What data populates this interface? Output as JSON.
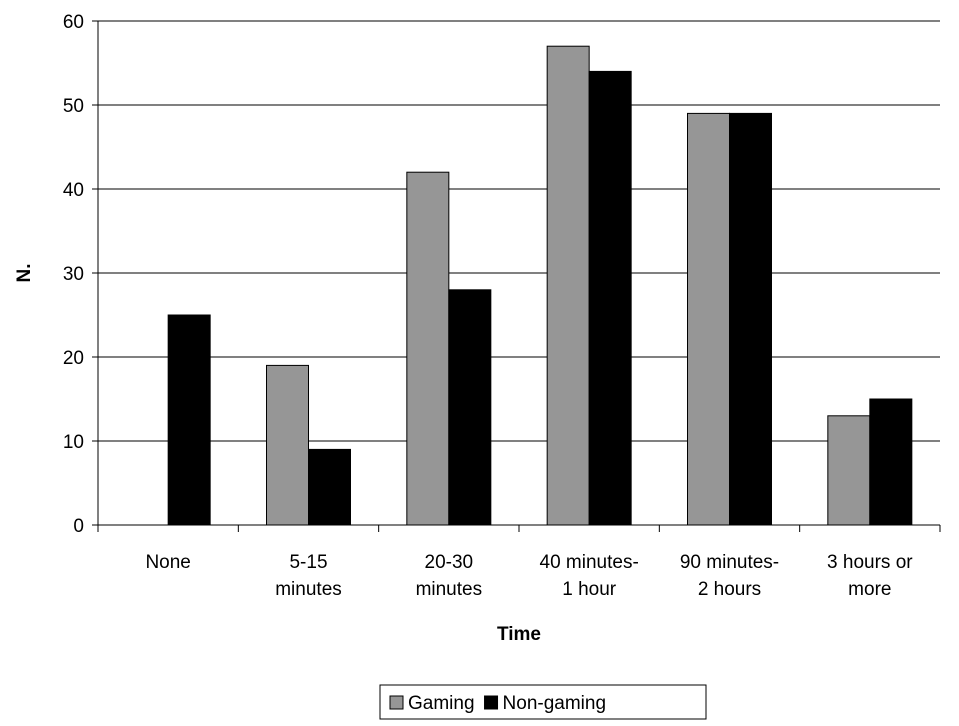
{
  "chart_data": {
    "type": "bar",
    "title": "",
    "xlabel": "Time",
    "ylabel": "N.",
    "ylim": [
      0,
      60
    ],
    "yticks": [
      0,
      10,
      20,
      30,
      40,
      50,
      60
    ],
    "grid": "horizontal",
    "legend": "bottom",
    "categories": [
      [
        "None"
      ],
      [
        "5-15",
        "minutes"
      ],
      [
        "20-30",
        "minutes"
      ],
      [
        "40 minutes-",
        "1 hour"
      ],
      [
        "90 minutes-",
        "2 hours"
      ],
      [
        "3 hours or",
        "more"
      ]
    ],
    "series": [
      {
        "name": "Gaming",
        "color": "#969696",
        "values": [
          0,
          19,
          42,
          57,
          49,
          13
        ]
      },
      {
        "name": "Non-gaming",
        "color": "#000000",
        "values": [
          25,
          9,
          28,
          54,
          49,
          15
        ]
      }
    ]
  }
}
